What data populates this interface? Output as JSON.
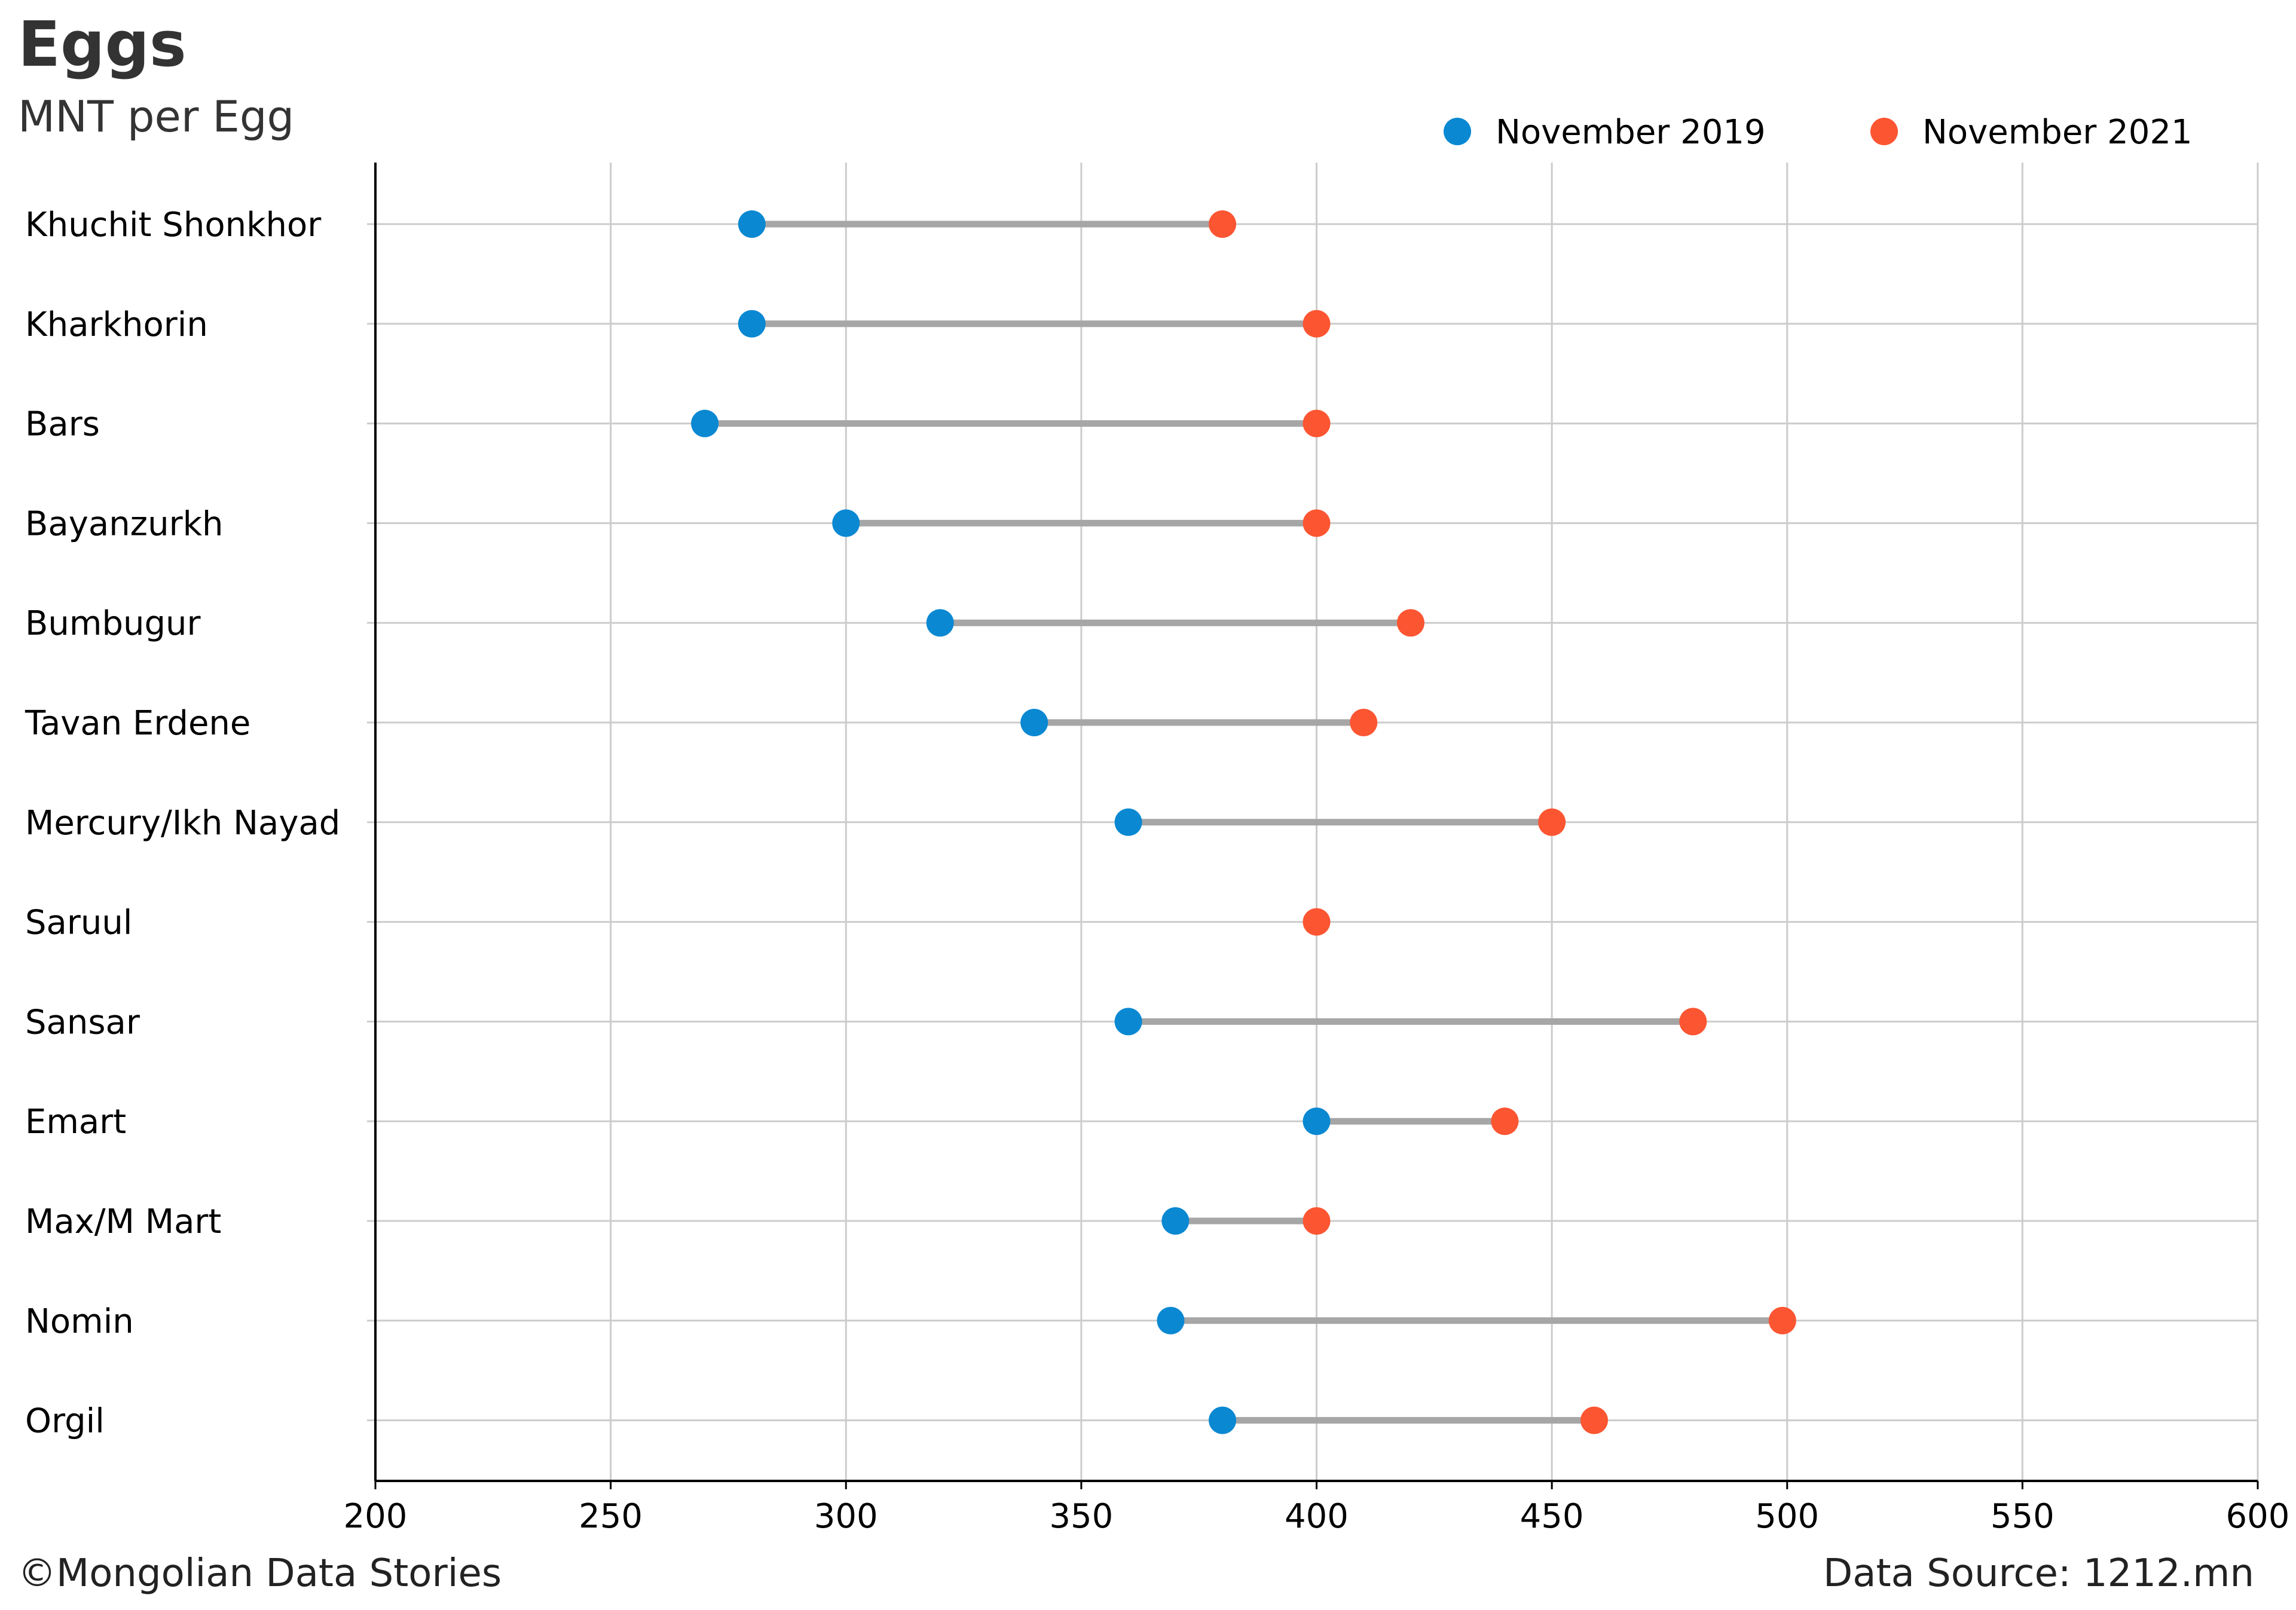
{
  "title": "Eggs",
  "subtitle": "MNT per Egg",
  "footer": {
    "credit": "©Mongolian Data Stories",
    "source": "Data Source: 1212.mn"
  },
  "colors": {
    "series_2019": "#0a88d2",
    "series_2021": "#fc5532",
    "connector": "#a6a6a6",
    "grid": "#cccccc",
    "axis": "#000000"
  },
  "chart_data": {
    "type": "scatter",
    "subtype": "dumbbell",
    "title": "Eggs",
    "subtitle": "MNT per Egg",
    "xlabel": "",
    "ylabel": "",
    "xlim": [
      200,
      600
    ],
    "xticks": [
      200,
      250,
      300,
      350,
      400,
      450,
      500,
      550,
      600
    ],
    "grid": true,
    "legend_position": "top-right",
    "categories": [
      "Khuchit Shonkhor",
      "Kharkhorin",
      "Bars",
      "Bayanzurkh",
      "Bumbugur",
      "Tavan Erdene",
      "Mercury/Ikh Nayad",
      "Saruul",
      "Sansar",
      "Emart",
      "Max/M Mart",
      "Nomin",
      "Orgil"
    ],
    "series": [
      {
        "name": "November 2019",
        "color": "#0a88d2",
        "values": [
          280,
          280,
          270,
          300,
          320,
          340,
          360,
          null,
          360,
          400,
          370,
          369,
          380
        ]
      },
      {
        "name": "November 2021",
        "color": "#fc5532",
        "values": [
          380,
          400,
          400,
          400,
          420,
          410,
          450,
          400,
          480,
          440,
          400,
          499,
          459
        ]
      }
    ]
  }
}
